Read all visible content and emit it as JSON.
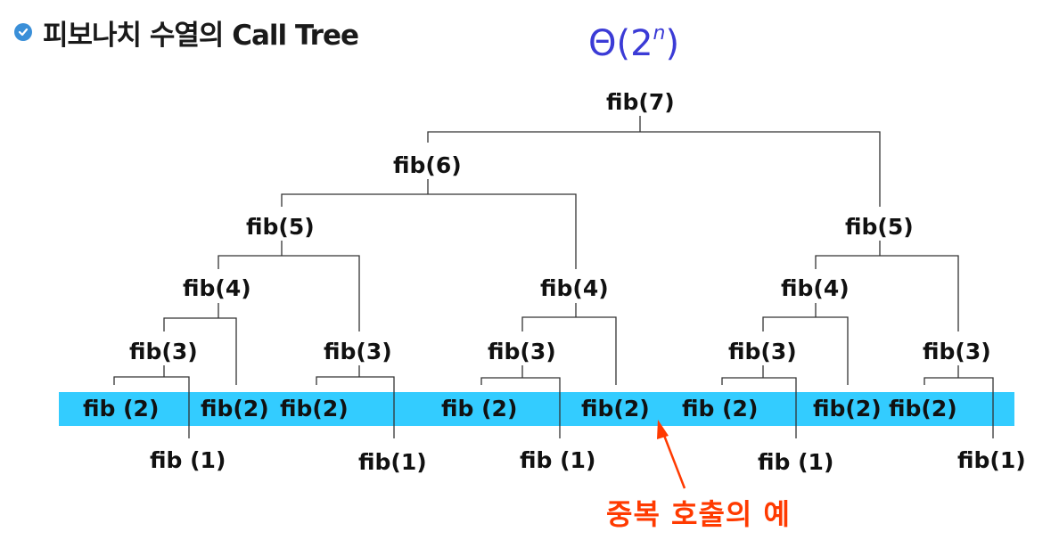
{
  "header": {
    "title": "피보나치 수열의 Call Tree",
    "complexity_base": "Θ(2",
    "complexity_exp": "n",
    "complexity_close": ")"
  },
  "tree": {
    "nodes": {
      "n7": "fib(7)",
      "n6": "fib(6)",
      "n5a": "fib(5)",
      "n5b": "fib(5)",
      "n4a": "fib(4)",
      "n4b": "fib(4)",
      "n4c": "fib(4)",
      "n3a": "fib(3)",
      "n3b": "fib(3)",
      "n3c": "fib(3)",
      "n3d": "fib(3)",
      "n3e": "fib(3)",
      "n2a": "fib (2)",
      "n2b": "fib(2)",
      "n2c": "fib(2)",
      "n2d": "fib (2)",
      "n2e": "fib(2)",
      "n2f": "fib (2)",
      "n2g": "fib(2)",
      "n2h": "fib(2)",
      "n1a": "fib (1)",
      "n1b": "fib(1)",
      "n1c": "fib (1)",
      "n1d": "fib (1)",
      "n1e": "fib(1)"
    }
  },
  "annotation": {
    "text": "중복 호출의 예",
    "color": "#ff3a00"
  },
  "colors": {
    "band": "#33ccff",
    "complexity": "#3b3bd6",
    "bullet": "#3a8fd8"
  }
}
